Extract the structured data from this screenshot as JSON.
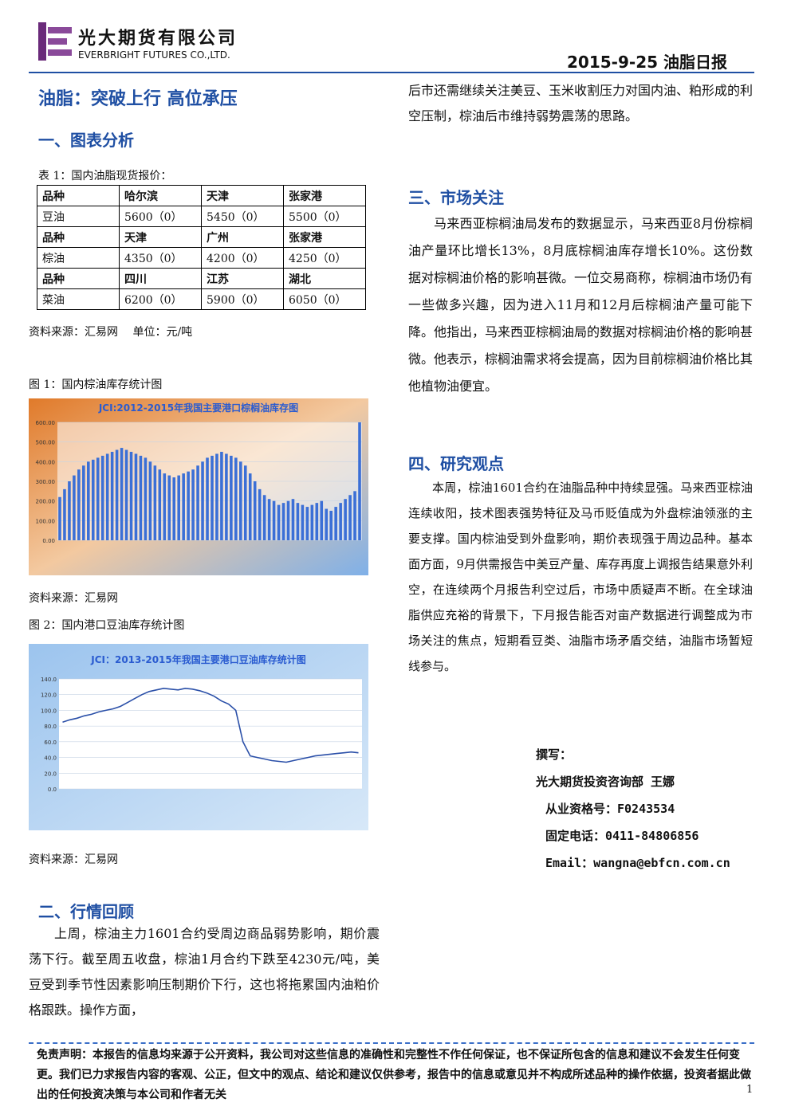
{
  "header": {
    "company_cn": "光大期货有限公司",
    "company_en": "EVERBRIGHT FUTURES CO.,LTD.",
    "report": "2015-9-25 油脂日报"
  },
  "title": "油脂：突破上行 高位承压",
  "section1": {
    "heading": "一、图表分析",
    "table_caption": "表 1：国内油脂现货报价：",
    "table": {
      "rows": [
        [
          "品种",
          "哈尔滨",
          "天津",
          "张家港"
        ],
        [
          "豆油",
          "5600（0）",
          "5450（0）",
          "5500（0）"
        ],
        [
          "品种",
          "天津",
          "广州",
          "张家港"
        ],
        [
          "棕油",
          "4350（0）",
          "4200（0）",
          "4250（0）"
        ],
        [
          "品种",
          "四川",
          "江苏",
          "湖北"
        ],
        [
          "菜油",
          "6200（0）",
          "5900（0）",
          "6050（0）"
        ]
      ]
    },
    "table_source": "资料来源：汇易网　 单位：元/吨"
  },
  "figures": [
    {
      "caption": "图 1：国内棕油库存统计图",
      "source": "资料来源：汇易网",
      "chart": {
        "type": "bar",
        "title": "JCI:2012-2015年我国主要港口棕榈油库存图",
        "ylim": [
          0,
          600
        ],
        "yticks": [
          {
            "value": 0,
            "label": "0.00"
          },
          {
            "value": 100,
            "label": "100.00"
          },
          {
            "value": 200,
            "label": "200.00"
          },
          {
            "value": 300,
            "label": "300.00"
          },
          {
            "value": 400,
            "label": "400.00"
          },
          {
            "value": 500,
            "label": "500.00"
          },
          {
            "value": 600,
            "label": "600.00"
          }
        ],
        "color": "#3b6fd6",
        "values": [
          220,
          260,
          300,
          330,
          360,
          380,
          400,
          410,
          420,
          430,
          440,
          450,
          460,
          470,
          460,
          450,
          440,
          430,
          420,
          400,
          380,
          360,
          340,
          330,
          320,
          330,
          340,
          350,
          360,
          380,
          400,
          420,
          430,
          440,
          450,
          440,
          430,
          420,
          400,
          380,
          340,
          300,
          260,
          230,
          210,
          200,
          180,
          190,
          200,
          210,
          190,
          180,
          170,
          180,
          190,
          200,
          160,
          150,
          170,
          190,
          210,
          230,
          250,
          600
        ]
      }
    },
    {
      "caption": "图 2：国内港口豆油库存统计图",
      "source": "资料来源：汇易网",
      "chart": {
        "type": "line",
        "title": "JCI：2013-2015年我国主要港口豆油库存统计图",
        "ylim": [
          0,
          140
        ],
        "yticks": [
          {
            "value": 0,
            "label": "0.0"
          },
          {
            "value": 20,
            "label": "20.0"
          },
          {
            "value": 40,
            "label": "40.0"
          },
          {
            "value": 60,
            "label": "60.0"
          },
          {
            "value": 80,
            "label": "80.0"
          },
          {
            "value": 100,
            "label": "100.0"
          },
          {
            "value": 120,
            "label": "120.0"
          },
          {
            "value": 140,
            "label": "140.0"
          }
        ],
        "color": "#2a4fa8",
        "values": [
          85,
          88,
          90,
          93,
          95,
          98,
          100,
          102,
          105,
          110,
          115,
          120,
          124,
          126,
          128,
          127,
          126,
          128,
          127,
          125,
          122,
          118,
          112,
          108,
          100,
          60,
          42,
          40,
          38,
          36,
          35,
          34,
          36,
          38,
          40,
          42,
          43,
          44,
          45,
          46,
          47,
          46
        ]
      }
    }
  ],
  "section2": {
    "heading": "二、行情回顾",
    "paragraph": [
      "上周，棕油主力1601合约受周边商品弱势影响，期价震荡下行。截至周五收盘，棕油1月合约下跌至4230元/吨，美豆受到季节性因素影响压制期价下行，这也将拖累国内油粕价格跟跌。操作方面，",
      "后市还需继续关注美豆、玉米收割压力对国内油、粕形成的利空压制，棕油后市维持弱势震荡的思路。"
    ]
  },
  "section3": {
    "heading": "三、市场关注",
    "paragraph": "马来西亚棕榈油局发布的数据显示，马来西亚8月份棕榈油产量环比增长13%，8月底棕榈油库存增长10%。这份数据对棕榈油价格的影响甚微。一位交易商称，棕榈油市场仍有一些做多兴趣，因为进入11月和12月后棕榈油产量可能下降。他指出，马来西亚棕榈油局的数据对棕榈油价格的影响甚微。他表示，棕榈油需求将会提高，因为目前棕榈油价格比其他植物油便宜。"
  },
  "section4": {
    "heading": "四、研究观点",
    "paragraph": "本周，棕油1601合约在油脂品种中持续显强。马来西亚棕油连续收阳，技术图表强势特征及马币贬值成为外盘棕油领涨的主要支撑。国内棕油受到外盘影响，期价表现强于周边品种。基本面方面，9月供需报告中美豆产量、库存再度上调报告结果意外利空，在连续两个月报告利空过后，市场中质疑声不断。在全球油脂供应充裕的背景下，下月报告能否对亩产数据进行调整成为市场关注的焦点，短期看豆类、油脂市场矛盾交结，油脂市场暂短线参与。"
  },
  "author": {
    "label": "撰写：",
    "lines": [
      "光大期货投资咨询部 王娜",
      "从业资格号：F0243534",
      "固定电话：0411-84806856",
      "Email：wangna@ebfcn.com.cn"
    ]
  },
  "disclaimer": "免责声明：本报告的信息均来源于公开资料，我公司对这些信息的准确性和完整性不作任何保证，也不保证所包含的信息和建议不会发生任何变更。我们已力求报告内容的客观、公正，但文中的观点、结论和建议仅供参考，报告中的信息或意见并不构成所述品种的操作依据，投资者据此做出的任何投资决策与本公司和作者无关",
  "page_number": "1"
}
